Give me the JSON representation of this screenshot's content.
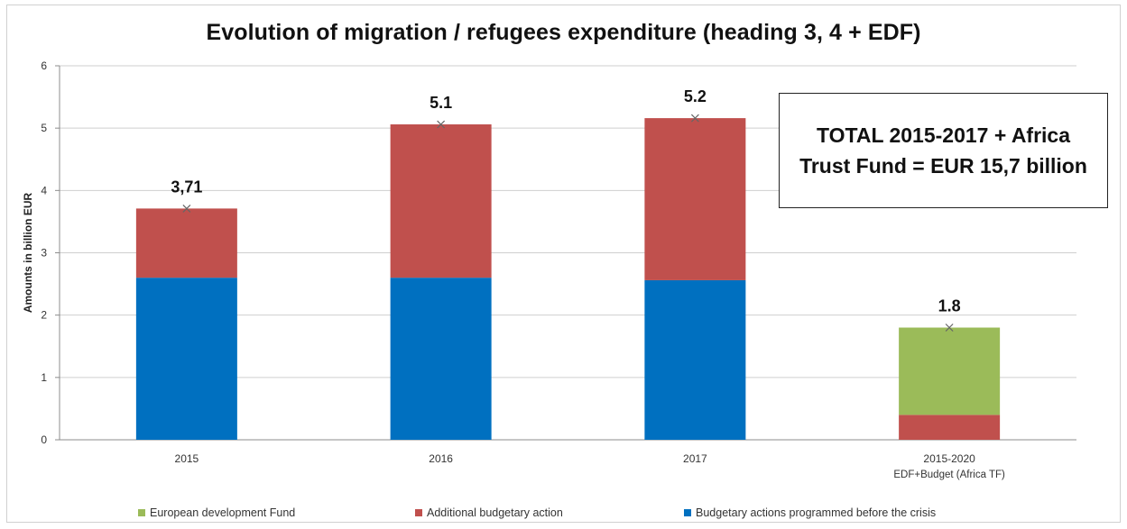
{
  "chart_data": {
    "type": "bar",
    "stacked": true,
    "title": "Evolution of migration / refugees expenditure (heading 3, 4 + EDF)",
    "xlabel": "",
    "ylabel": "Amounts in billion EUR",
    "ylim": [
      0,
      6
    ],
    "yticks": [
      "0",
      "1",
      "2",
      "3",
      "4",
      "5",
      "6"
    ],
    "grid": true,
    "legend_position": "bottom",
    "categories": [
      {
        "label": "2015",
        "sublabel": ""
      },
      {
        "label": "2016",
        "sublabel": ""
      },
      {
        "label": "2017",
        "sublabel": ""
      },
      {
        "label": "2015-2020",
        "sublabel": "EDF+Budget (Africa TF)"
      }
    ],
    "series": [
      {
        "name": "Budgetary actions programmed before the crisis",
        "color": "#0070C0",
        "values": [
          2.6,
          2.6,
          2.56,
          0
        ]
      },
      {
        "name": "Additional budgetary action",
        "color": "#C0504D",
        "values": [
          1.11,
          2.46,
          2.6,
          0.4
        ]
      },
      {
        "name": "European development Fund",
        "color": "#9BBB59",
        "values": [
          0,
          0,
          0,
          1.4
        ]
      }
    ],
    "totals": [
      3.71,
      5.06,
      5.16,
      1.8
    ],
    "data_labels": [
      "3,71",
      "5.1",
      "5.2",
      "1.8"
    ],
    "legend_order": [
      "European development Fund",
      "Additional budgetary action",
      "Budgetary actions programmed before the crisis"
    ],
    "annotation": {
      "line1": "TOTAL 2015-2017 + Africa",
      "line2": "Trust Fund = EUR 15,7 billion"
    }
  }
}
